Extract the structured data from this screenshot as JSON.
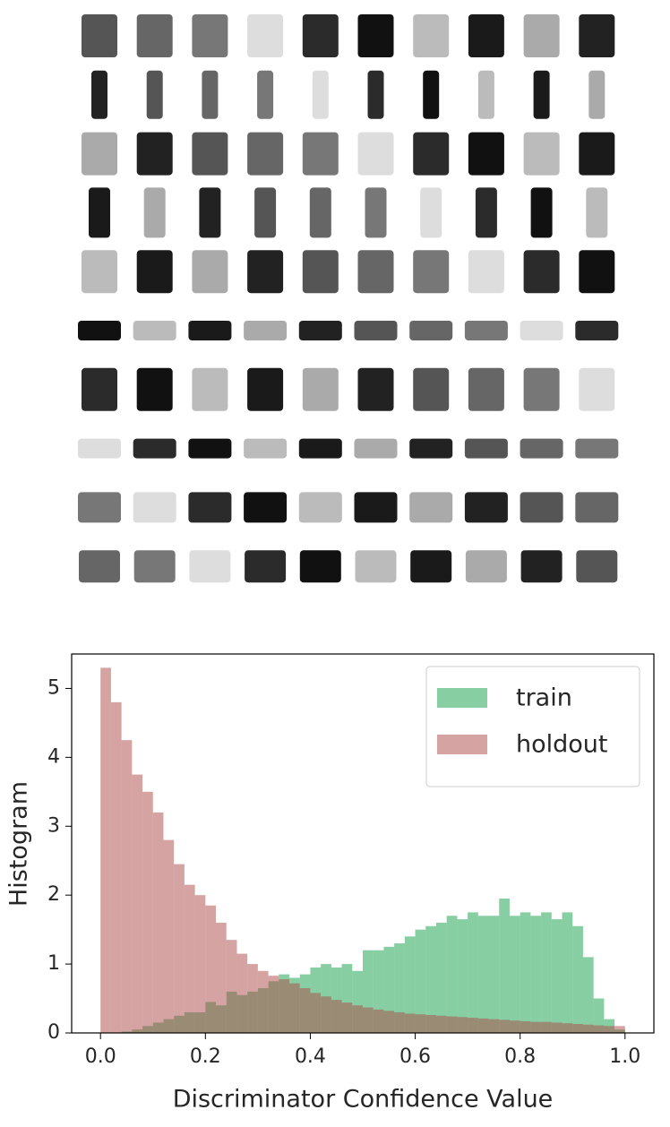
{
  "chart_data": {
    "type": "histogram",
    "xlabel": "Discriminator Confidence Value",
    "ylabel": "Histogram",
    "bins": [
      0,
      0.02,
      0.04,
      0.06,
      0.08,
      0.1,
      0.12,
      0.14,
      0.16,
      0.18,
      0.2,
      0.22,
      0.24,
      0.26,
      0.28,
      0.3,
      0.32,
      0.34,
      0.36,
      0.38,
      0.4,
      0.42,
      0.44,
      0.46,
      0.48,
      0.5,
      0.52,
      0.54,
      0.56,
      0.58,
      0.6,
      0.62,
      0.64,
      0.66,
      0.68,
      0.7,
      0.72,
      0.74,
      0.76,
      0.78,
      0.8,
      0.82,
      0.84,
      0.86,
      0.88,
      0.9,
      0.92,
      0.94,
      0.96,
      0.98,
      1.0
    ],
    "series": [
      {
        "name": "train",
        "color": "#0f9d47",
        "values": [
          0,
          0,
          0.02,
          0.05,
          0.1,
          0.15,
          0.2,
          0.25,
          0.3,
          0.3,
          0.45,
          0.4,
          0.6,
          0.55,
          0.6,
          0.65,
          0.75,
          0.85,
          0.8,
          0.85,
          0.95,
          1.0,
          0.95,
          1.0,
          0.9,
          1.2,
          1.2,
          1.25,
          1.3,
          1.4,
          1.5,
          1.55,
          1.6,
          1.7,
          1.65,
          1.75,
          1.7,
          1.7,
          1.95,
          1.7,
          1.75,
          1.7,
          1.75,
          1.65,
          1.75,
          1.55,
          1.1,
          0.5,
          0.2,
          0.05
        ]
      },
      {
        "name": "holdout",
        "color": "#ad4747",
        "values": [
          5.3,
          4.8,
          4.25,
          3.75,
          3.5,
          3.2,
          2.8,
          2.45,
          2.15,
          2.0,
          1.85,
          1.6,
          1.35,
          1.15,
          1.0,
          0.9,
          0.83,
          0.78,
          0.72,
          0.65,
          0.58,
          0.53,
          0.48,
          0.44,
          0.4,
          0.37,
          0.34,
          0.32,
          0.3,
          0.28,
          0.27,
          0.26,
          0.25,
          0.24,
          0.23,
          0.22,
          0.21,
          0.2,
          0.19,
          0.18,
          0.17,
          0.16,
          0.16,
          0.15,
          0.14,
          0.13,
          0.12,
          0.11,
          0.1,
          0.1
        ]
      }
    ],
    "opacity": 0.5,
    "xlim": [
      -0.055,
      1.055
    ],
    "ylim": [
      0,
      5.5
    ],
    "xticks": [
      {
        "value": 0,
        "label": "0.0"
      },
      {
        "value": 0.2,
        "label": "0.2"
      },
      {
        "value": 0.4,
        "label": "0.4"
      },
      {
        "value": 0.6,
        "label": "0.6"
      },
      {
        "value": 0.8,
        "label": "0.8"
      },
      {
        "value": 1.0,
        "label": "1.0"
      }
    ],
    "yticks": [
      0,
      1,
      2,
      3,
      4,
      5
    ],
    "legend": "upper right"
  }
}
